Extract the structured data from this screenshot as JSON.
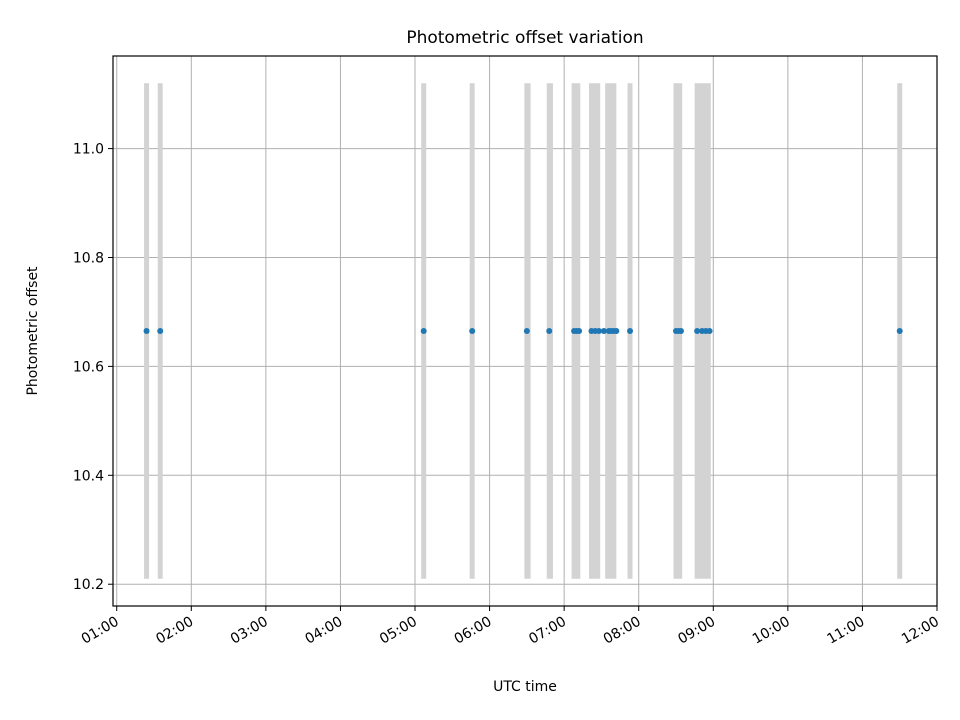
{
  "chart_data": {
    "type": "scatter",
    "title": "Photometric offset variation",
    "xlabel": "UTC time",
    "ylabel": "Photometric offset",
    "x_tick_labels": [
      "01:00",
      "02:00",
      "03:00",
      "04:00",
      "05:00",
      "06:00",
      "07:00",
      "08:00",
      "09:00",
      "10:00",
      "11:00",
      "12:00"
    ],
    "y_tick_labels": [
      "10.2",
      "10.4",
      "10.6",
      "10.8",
      "11.0"
    ],
    "y_ticks": [
      10.2,
      10.4,
      10.6,
      10.8,
      11.0
    ],
    "xlim": [
      "00:57",
      "12:00"
    ],
    "ylim": [
      10.16,
      11.17
    ],
    "grid": true,
    "series": [
      {
        "times": [
          "01:24",
          "01:35",
          "05:07",
          "05:46",
          "06:30",
          "06:48",
          "07:08",
          "07:10",
          "07:12",
          "07:22",
          "07:25",
          "07:28",
          "07:32",
          "07:36",
          "07:38",
          "07:40",
          "07:42",
          "07:53",
          "08:30",
          "08:32",
          "08:34",
          "08:47",
          "08:51",
          "08:54",
          "08:57",
          "11:30"
        ],
        "values": [
          10.665,
          10.665,
          10.665,
          10.665,
          10.665,
          10.665,
          10.665,
          10.665,
          10.665,
          10.665,
          10.665,
          10.665,
          10.665,
          10.665,
          10.665,
          10.665,
          10.665,
          10.665,
          10.665,
          10.665,
          10.665,
          10.665,
          10.665,
          10.665,
          10.665,
          10.665
        ],
        "color": "#1f77b4"
      }
    ],
    "exposure_bands": {
      "color": "#d3d3d3",
      "y_range": [
        10.21,
        11.12
      ],
      "intervals": [
        [
          "01:22",
          "01:26"
        ],
        [
          "01:33",
          "01:37"
        ],
        [
          "05:05",
          "05:09"
        ],
        [
          "05:44",
          "05:48"
        ],
        [
          "06:28",
          "06:33"
        ],
        [
          "06:46",
          "06:51"
        ],
        [
          "07:06",
          "07:13"
        ],
        [
          "07:20",
          "07:29"
        ],
        [
          "07:33",
          "07:42"
        ],
        [
          "07:51",
          "07:55"
        ],
        [
          "08:28",
          "08:35"
        ],
        [
          "08:45",
          "08:58"
        ],
        [
          "11:28",
          "11:32"
        ]
      ]
    }
  }
}
